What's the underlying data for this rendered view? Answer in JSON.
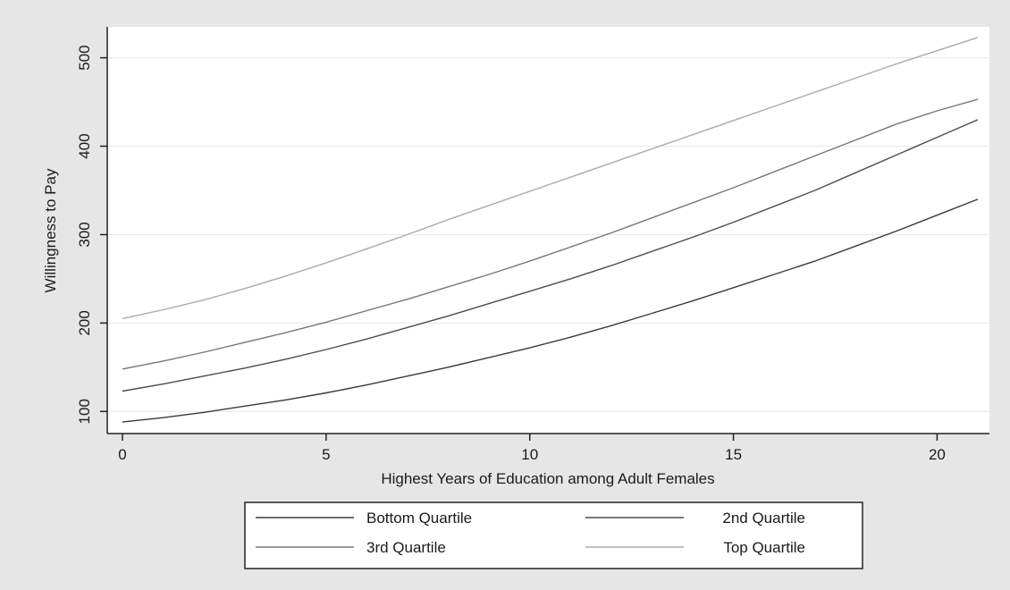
{
  "chart_data": {
    "type": "line",
    "xlabel": "Highest Years of Education among Adult Females",
    "ylabel": "Willingness to Pay",
    "xlim": [
      0,
      21
    ],
    "ylim": [
      75,
      535
    ],
    "xticks": [
      "0",
      "5",
      "10",
      "15",
      "20"
    ],
    "yticks": [
      "100",
      "200",
      "300",
      "400",
      "500"
    ],
    "grid": "horizontal",
    "legend_position": "bottom",
    "x": [
      0,
      1,
      2,
      3,
      4,
      5,
      6,
      7,
      8,
      9,
      10,
      11,
      12,
      13,
      14,
      15,
      16,
      17,
      18,
      19,
      20,
      21
    ],
    "series": [
      {
        "name": "Bottom Quartile",
        "color": "#3a3a3a",
        "values": [
          88,
          93,
          99,
          106,
          113,
          121,
          130,
          140,
          150,
          161,
          172,
          184,
          197,
          211,
          225,
          240,
          255,
          270,
          287,
          304,
          322,
          340
        ]
      },
      {
        "name": "2nd Quartile",
        "color": "#4d4d4d",
        "values": [
          123,
          131,
          140,
          149,
          159,
          170,
          182,
          195,
          208,
          222,
          236,
          250,
          265,
          281,
          297,
          314,
          332,
          350,
          370,
          390,
          410,
          430
        ]
      },
      {
        "name": "3rd Quartile",
        "color": "#777777",
        "values": [
          148,
          157,
          167,
          178,
          189,
          201,
          214,
          227,
          241,
          255,
          270,
          286,
          302,
          319,
          336,
          353,
          371,
          389,
          407,
          425,
          440,
          453
        ]
      },
      {
        "name": "Top Quartile",
        "color": "#aaaaaa",
        "values": [
          205,
          215,
          226,
          239,
          253,
          268,
          284,
          300,
          317,
          333,
          349,
          365,
          381,
          397,
          413,
          429,
          445,
          461,
          477,
          493,
          508,
          523
        ]
      }
    ]
  }
}
